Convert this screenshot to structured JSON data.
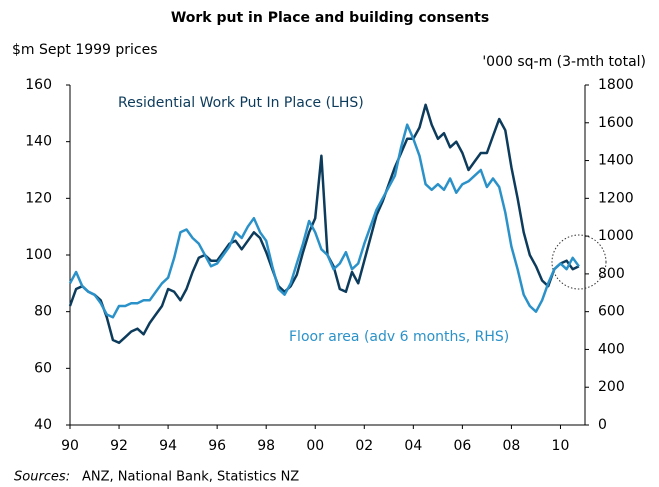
{
  "chart_data": {
    "type": "line",
    "title": "Work put in Place and building consents",
    "y_label": "$m Sept 1999 prices",
    "y2_label": "'000 sq-m (3-mth total)",
    "source_label": "Sources:",
    "source": "ANZ, National Bank, Statistics NZ",
    "x": [
      1990,
      1990.25,
      1990.5,
      1990.75,
      1991,
      1991.25,
      1991.5,
      1991.75,
      1992,
      1992.25,
      1992.5,
      1992.75,
      1993,
      1993.25,
      1993.5,
      1993.75,
      1994,
      1994.25,
      1994.5,
      1994.75,
      1995,
      1995.25,
      1995.5,
      1995.75,
      1996,
      1996.25,
      1996.5,
      1996.75,
      1997,
      1997.25,
      1997.5,
      1997.75,
      1998,
      1998.25,
      1998.5,
      1998.75,
      1999,
      1999.25,
      1999.5,
      1999.75,
      2000,
      2000.25,
      2000.5,
      2000.75,
      2001,
      2001.25,
      2001.5,
      2001.75,
      2002,
      2002.25,
      2002.5,
      2002.75,
      2003,
      2003.25,
      2003.5,
      2003.75,
      2004,
      2004.25,
      2004.5,
      2004.75,
      2005,
      2005.25,
      2005.5,
      2005.75,
      2006,
      2006.25,
      2006.5,
      2006.75,
      2007,
      2007.25,
      2007.5,
      2007.75,
      2008,
      2008.25,
      2008.5,
      2008.75,
      2009,
      2009.25,
      2009.5,
      2009.75,
      2010,
      2010.25,
      2010.5,
      2010.75
    ],
    "series": [
      {
        "name": "Residential Work Put In Place (LHS)",
        "color": "#0d3b5c",
        "axis": "y",
        "values": [
          82,
          88,
          89,
          87,
          86,
          84,
          78,
          70,
          69,
          71,
          73,
          74,
          72,
          76,
          79,
          82,
          88,
          87,
          84,
          88,
          94,
          99,
          100,
          98,
          98,
          101,
          104,
          105,
          102,
          105,
          108,
          106,
          101,
          95,
          89,
          87,
          89,
          93,
          101,
          108,
          113,
          135,
          100,
          96,
          88,
          87,
          94,
          90,
          98,
          106,
          114,
          119,
          125,
          131,
          136,
          141,
          141,
          145,
          153,
          146,
          141,
          143,
          138,
          140,
          136,
          130,
          133,
          136,
          136,
          142,
          148,
          144,
          131,
          120,
          108,
          100,
          96,
          91,
          89,
          95,
          97,
          98,
          95,
          96
        ]
      },
      {
        "name": "Floor area (adv 6 months, RHS)",
        "color": "#2b92c9",
        "axis": "y2",
        "values": [
          750,
          810,
          735,
          705,
          690,
          645,
          585,
          570,
          630,
          630,
          645,
          645,
          660,
          660,
          705,
          750,
          780,
          885,
          1020,
          1035,
          990,
          960,
          900,
          840,
          855,
          900,
          945,
          1020,
          990,
          1050,
          1095,
          1020,
          975,
          840,
          720,
          690,
          750,
          855,
          960,
          1080,
          1020,
          930,
          900,
          825,
          855,
          915,
          825,
          855,
          960,
          1050,
          1140,
          1200,
          1260,
          1320,
          1470,
          1590,
          1515,
          1425,
          1275,
          1245,
          1275,
          1245,
          1305,
          1230,
          1275,
          1290,
          1320,
          1350,
          1260,
          1305,
          1260,
          1125,
          945,
          825,
          690,
          630,
          600,
          660,
          750,
          825,
          855,
          825,
          885,
          840
        ]
      }
    ],
    "xlim": [
      1990,
      2011
    ],
    "xticks": [
      {
        "value": 1990,
        "label": "90"
      },
      {
        "value": 1992,
        "label": "92"
      },
      {
        "value": 1994,
        "label": "94"
      },
      {
        "value": 1996,
        "label": "96"
      },
      {
        "value": 1998,
        "label": "98"
      },
      {
        "value": 2000,
        "label": "00"
      },
      {
        "value": 2002,
        "label": "02"
      },
      {
        "value": 2004,
        "label": "04"
      },
      {
        "value": 2006,
        "label": "06"
      },
      {
        "value": 2008,
        "label": "08"
      },
      {
        "value": 2010,
        "label": "10"
      }
    ],
    "ylim": [
      40,
      160
    ],
    "yticks": [
      40,
      60,
      80,
      100,
      120,
      140,
      160
    ],
    "y2lim": [
      0,
      1800
    ],
    "y2ticks": [
      0,
      200,
      400,
      600,
      800,
      1000,
      1200,
      1400,
      1600,
      1800
    ],
    "grid": false
  }
}
